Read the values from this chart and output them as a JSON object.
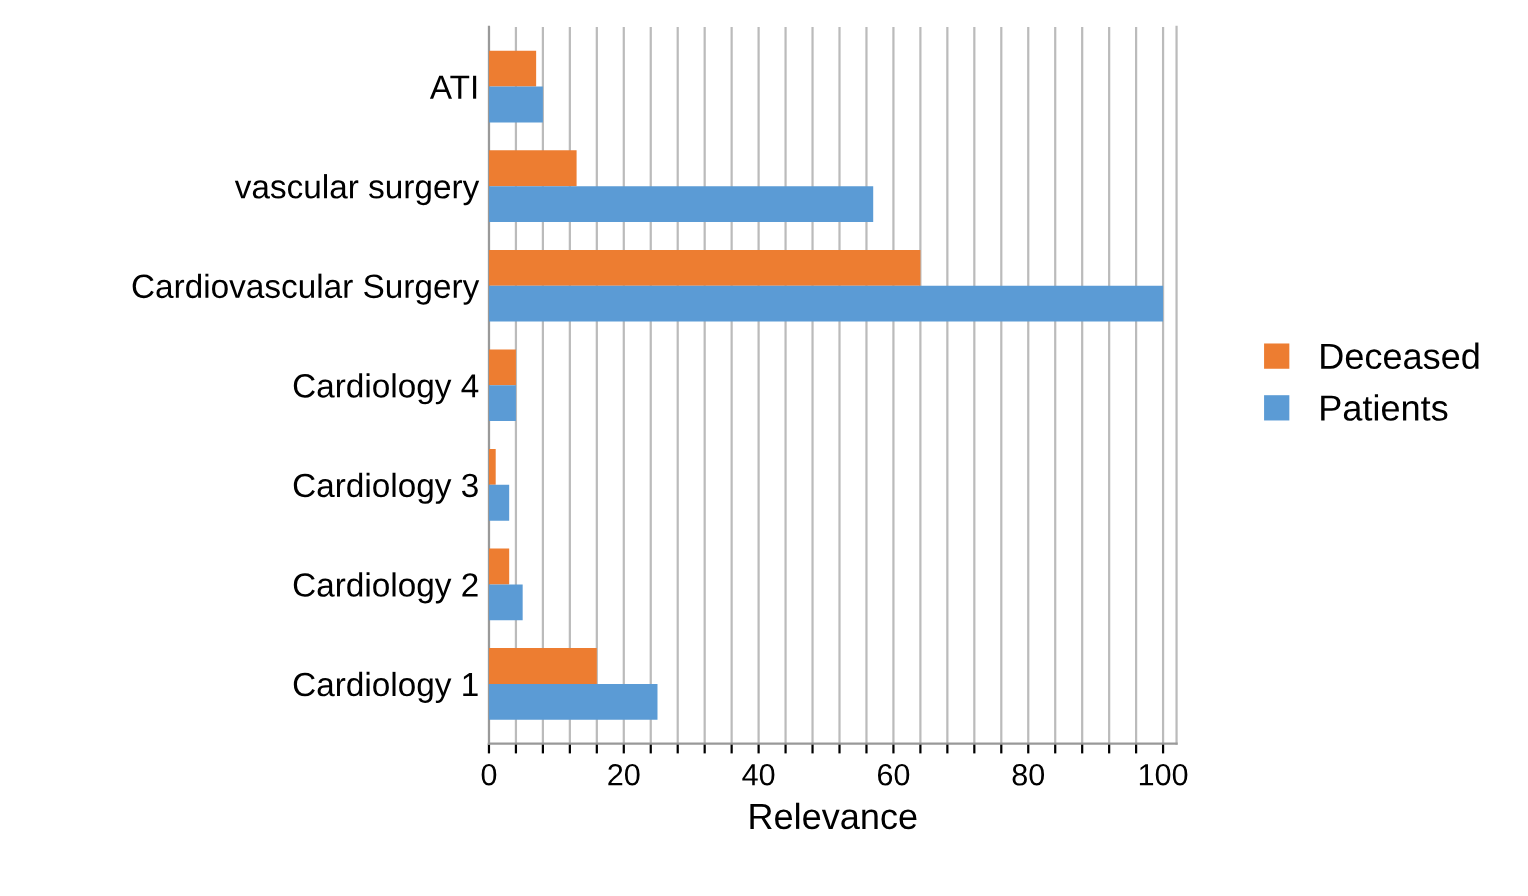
{
  "chart_data": {
    "type": "bar",
    "orientation": "horizontal",
    "xlabel": "Relevance",
    "categories": [
      "ATI",
      "vascular surgery",
      "Cardiovascular Surgery",
      "Cardiology 4",
      "Cardiology 3",
      "Cardiology 2",
      "Cardiology 1"
    ],
    "series": [
      {
        "name": "Deceased",
        "color": "#ed7d31",
        "values": [
          7,
          13,
          64,
          4,
          1,
          3,
          16
        ]
      },
      {
        "name": "Patients",
        "color": "#5b9bd5",
        "values": [
          8,
          57,
          100,
          4,
          3,
          5,
          25
        ]
      }
    ],
    "xlim": [
      0,
      102
    ],
    "xticks": [
      0,
      {
        "value": 4,
        "label": null
      },
      {
        "value": 8,
        "label": null
      },
      {
        "value": 12,
        "label": null
      },
      {
        "value": 16,
        "label": null
      },
      20,
      {
        "value": 24,
        "label": null
      },
      {
        "value": 28,
        "label": null
      },
      {
        "value": 32,
        "label": null
      },
      {
        "value": 36,
        "label": null
      },
      40,
      {
        "value": 44,
        "label": null
      },
      {
        "value": 48,
        "label": null
      },
      {
        "value": 52,
        "label": null
      },
      {
        "value": 56,
        "label": null
      },
      60,
      {
        "value": 64,
        "label": null
      },
      {
        "value": 68,
        "label": null
      },
      {
        "value": 72,
        "label": null
      },
      {
        "value": 76,
        "label": null
      },
      80,
      {
        "value": 84,
        "label": null
      },
      {
        "value": 88,
        "label": null
      },
      {
        "value": 92,
        "label": null
      },
      {
        "value": 96,
        "label": null
      },
      100
    ],
    "grid": "x",
    "legend": "right"
  }
}
